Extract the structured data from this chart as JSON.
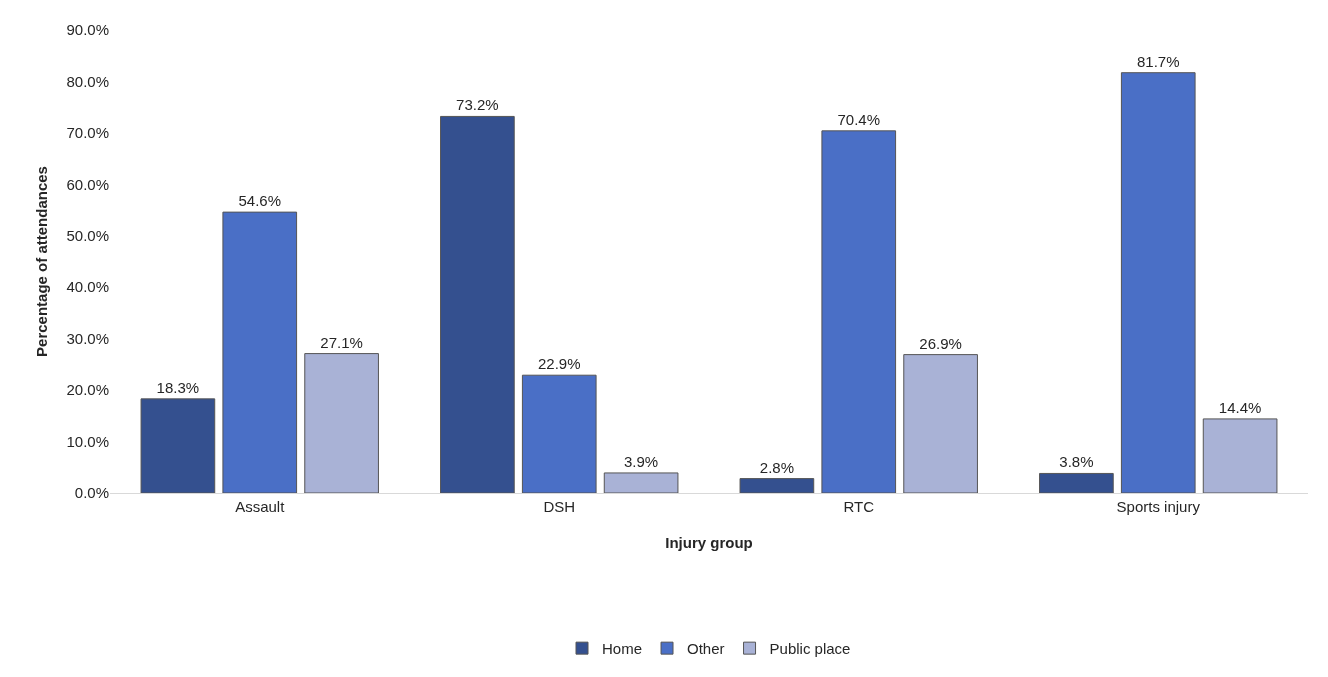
{
  "chart_data": {
    "type": "bar",
    "xlabel": "Injury group",
    "ylabel": "Percentage of attendances",
    "categories": [
      "Assault",
      "DSH",
      "RTC",
      "Sports injury"
    ],
    "series": [
      {
        "name": "Home",
        "color": "#34508f",
        "values": [
          18.3,
          73.2,
          2.8,
          3.8
        ],
        "value_labels": [
          "18.3%",
          "73.2%",
          "2.8%",
          "3.8%"
        ]
      },
      {
        "name": "Other",
        "color": "#4a6fc6",
        "values": [
          54.6,
          22.9,
          70.4,
          81.7
        ],
        "value_labels": [
          "54.6%",
          "22.9%",
          "70.4%",
          "81.7%"
        ]
      },
      {
        "name": "Public place",
        "color": "#a9b2d6",
        "values": [
          27.1,
          3.9,
          26.9,
          14.4
        ],
        "value_labels": [
          "27.1%",
          "3.9%",
          "26.9%",
          "14.4%"
        ]
      }
    ],
    "ylim": [
      0,
      90
    ],
    "yticks": [
      {
        "value": 0,
        "label": "0.0%"
      },
      {
        "value": 10,
        "label": "10.0%"
      },
      {
        "value": 20,
        "label": "20.0%"
      },
      {
        "value": 30,
        "label": "30.0%"
      },
      {
        "value": 40,
        "label": "40.0%"
      },
      {
        "value": 50,
        "label": "50.0%"
      },
      {
        "value": 60,
        "label": "60.0%"
      },
      {
        "value": 70,
        "label": "70.0%"
      },
      {
        "value": 80,
        "label": "80.0%"
      },
      {
        "value": 90,
        "label": "90.0%"
      }
    ],
    "grid": false,
    "legend": "bottom"
  }
}
